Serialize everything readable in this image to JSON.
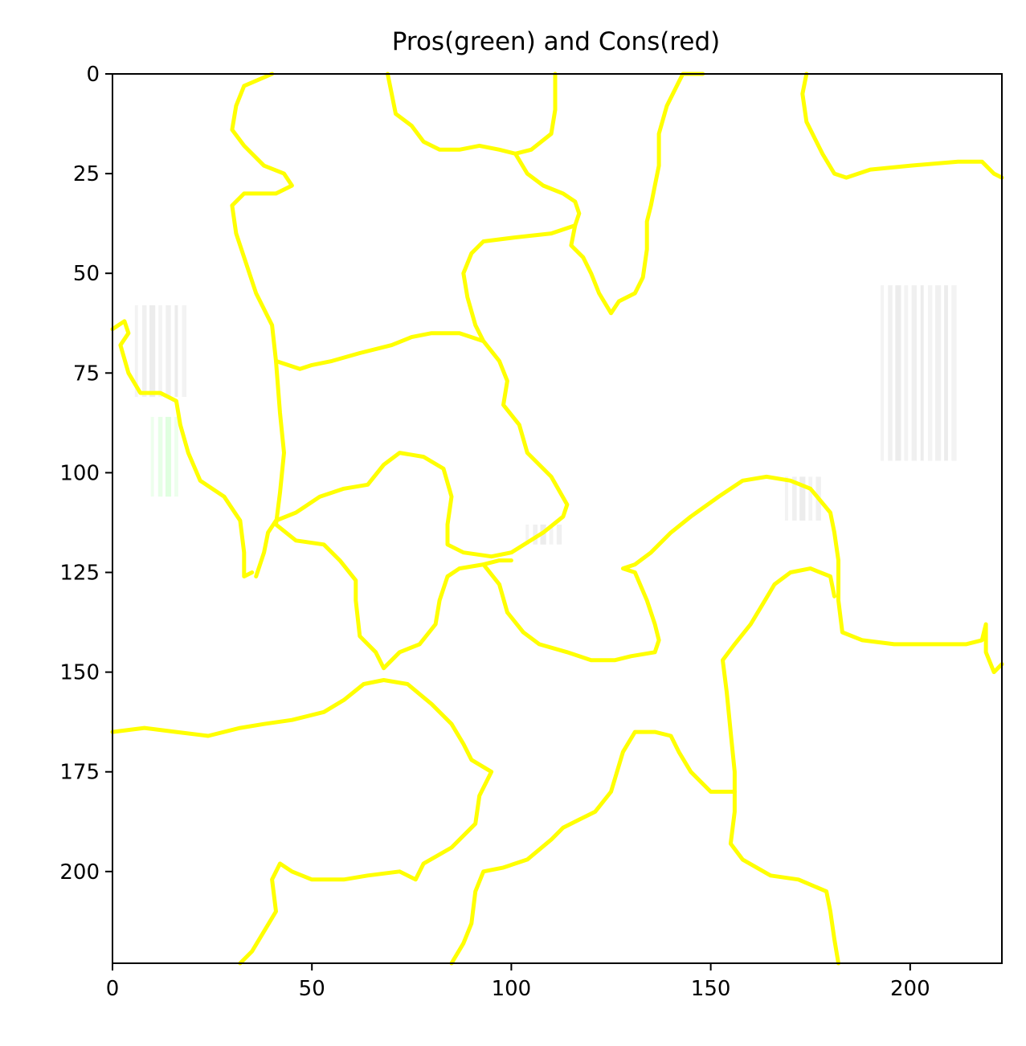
{
  "chart_data": {
    "type": "heatmap",
    "title": "Pros(green) and Cons(red)",
    "xlabel": "",
    "ylabel": "",
    "xlim": [
      0,
      223
    ],
    "ylim": [
      223,
      0
    ],
    "x_ticks": [
      0,
      50,
      100,
      150,
      200
    ],
    "y_ticks": [
      0,
      25,
      50,
      75,
      100,
      125,
      150,
      175,
      200
    ],
    "grid": false,
    "legend": "none",
    "colors": {
      "boundary": "#ffff00",
      "background": "#ffffff",
      "faint_image": "#c8c8c8",
      "pros": "#00ff00",
      "cons": "#ff0000"
    },
    "segment_boundaries": [
      {
        "points": [
          [
            40,
            0
          ],
          [
            33,
            3
          ],
          [
            31,
            8
          ],
          [
            30,
            14
          ],
          [
            33,
            18
          ],
          [
            38,
            23
          ],
          [
            43,
            25
          ],
          [
            45,
            28
          ],
          [
            41,
            30
          ],
          [
            33,
            30
          ],
          [
            30,
            33
          ],
          [
            31,
            40
          ],
          [
            36,
            55
          ],
          [
            40,
            63
          ],
          [
            41,
            72
          ],
          [
            47,
            74
          ],
          [
            50,
            73
          ],
          [
            55,
            72
          ],
          [
            62,
            70
          ],
          [
            70,
            68
          ],
          [
            75,
            66
          ],
          [
            80,
            65
          ],
          [
            87,
            65
          ],
          [
            93,
            67
          ],
          [
            97,
            72
          ],
          [
            99,
            77
          ],
          [
            98,
            83
          ],
          [
            102,
            88
          ],
          [
            104,
            95
          ],
          [
            110,
            101
          ],
          [
            114,
            108
          ],
          [
            113,
            111
          ],
          [
            108,
            115
          ],
          [
            100,
            120
          ],
          [
            95,
            121
          ],
          [
            88,
            120
          ],
          [
            84,
            118
          ],
          [
            84,
            113
          ],
          [
            85,
            106
          ],
          [
            83,
            99
          ],
          [
            78,
            96
          ],
          [
            72,
            95
          ],
          [
            68,
            98
          ],
          [
            64,
            103
          ],
          [
            58,
            104
          ],
          [
            52,
            106
          ],
          [
            46,
            110
          ],
          [
            41,
            112
          ],
          [
            39,
            115
          ],
          [
            38,
            120
          ],
          [
            36,
            126
          ]
        ]
      },
      {
        "points": [
          [
            41,
            72
          ],
          [
            42,
            85
          ],
          [
            43,
            95
          ],
          [
            42,
            105
          ],
          [
            41,
            113
          ],
          [
            46,
            117
          ],
          [
            53,
            118
          ],
          [
            57,
            122
          ],
          [
            61,
            127
          ],
          [
            61,
            132
          ],
          [
            62,
            141
          ],
          [
            66,
            145
          ],
          [
            68,
            149
          ],
          [
            72,
            145
          ],
          [
            77,
            143
          ],
          [
            81,
            138
          ],
          [
            82,
            132
          ],
          [
            84,
            126
          ],
          [
            87,
            124
          ],
          [
            93,
            123
          ],
          [
            97,
            122
          ],
          [
            100,
            122
          ]
        ]
      },
      {
        "points": [
          [
            93,
            123
          ],
          [
            97,
            128
          ],
          [
            99,
            135
          ],
          [
            103,
            140
          ],
          [
            107,
            143
          ],
          [
            114,
            145
          ],
          [
            120,
            147
          ],
          [
            126,
            147
          ],
          [
            130,
            146
          ],
          [
            136,
            145
          ],
          [
            137,
            142
          ],
          [
            136,
            138
          ],
          [
            134,
            132
          ],
          [
            131,
            125
          ],
          [
            128,
            124
          ],
          [
            131,
            123
          ],
          [
            135,
            120
          ],
          [
            140,
            115
          ],
          [
            145,
            111
          ],
          [
            152,
            106
          ],
          [
            158,
            102
          ],
          [
            164,
            101
          ],
          [
            170,
            102
          ],
          [
            175,
            104
          ],
          [
            180,
            110
          ],
          [
            181,
            115
          ],
          [
            182,
            122
          ],
          [
            182,
            132
          ],
          [
            183,
            140
          ],
          [
            188,
            142
          ],
          [
            196,
            143
          ],
          [
            203,
            143
          ],
          [
            210,
            143
          ],
          [
            214,
            143
          ],
          [
            218,
            142
          ],
          [
            219,
            138
          ],
          [
            219,
            145
          ],
          [
            221,
            150
          ],
          [
            223,
            148
          ]
        ]
      },
      {
        "points": [
          [
            69,
            0
          ],
          [
            70,
            5
          ],
          [
            71,
            10
          ],
          [
            75,
            13
          ],
          [
            78,
            17
          ],
          [
            82,
            19
          ],
          [
            87,
            19
          ],
          [
            92,
            18
          ],
          [
            97,
            19
          ],
          [
            101,
            20
          ],
          [
            105,
            19
          ],
          [
            110,
            15
          ],
          [
            111,
            9
          ],
          [
            111,
            0
          ]
        ]
      },
      {
        "points": [
          [
            101,
            20
          ],
          [
            104,
            25
          ],
          [
            108,
            28
          ],
          [
            113,
            30
          ],
          [
            116,
            32
          ],
          [
            117,
            35
          ],
          [
            116,
            38
          ],
          [
            115,
            43
          ],
          [
            118,
            46
          ],
          [
            120,
            50
          ],
          [
            122,
            55
          ],
          [
            125,
            60
          ],
          [
            127,
            57
          ],
          [
            131,
            55
          ],
          [
            133,
            51
          ],
          [
            134,
            44
          ],
          [
            134,
            37
          ],
          [
            135,
            33
          ],
          [
            136,
            28
          ],
          [
            137,
            23
          ],
          [
            137,
            15
          ],
          [
            139,
            8
          ],
          [
            142,
            2
          ],
          [
            143,
            0
          ],
          [
            148,
            0
          ]
        ]
      },
      {
        "points": [
          [
            116,
            38
          ],
          [
            110,
            40
          ],
          [
            101,
            41
          ],
          [
            93,
            42
          ],
          [
            90,
            45
          ],
          [
            88,
            50
          ],
          [
            89,
            56
          ],
          [
            91,
            63
          ],
          [
            93,
            67
          ]
        ]
      },
      {
        "points": [
          [
            174,
            0
          ],
          [
            173,
            5
          ],
          [
            174,
            12
          ],
          [
            178,
            20
          ],
          [
            181,
            25
          ],
          [
            184,
            26
          ],
          [
            190,
            24
          ],
          [
            200,
            23
          ],
          [
            212,
            22
          ],
          [
            218,
            22
          ],
          [
            221,
            25
          ],
          [
            223,
            26
          ]
        ]
      },
      {
        "points": [
          [
            0,
            64
          ],
          [
            3,
            62
          ],
          [
            4,
            65
          ],
          [
            2,
            68
          ],
          [
            4,
            75
          ],
          [
            7,
            80
          ],
          [
            12,
            80
          ],
          [
            16,
            82
          ],
          [
            17,
            88
          ],
          [
            19,
            95
          ],
          [
            22,
            102
          ],
          [
            28,
            106
          ],
          [
            32,
            112
          ],
          [
            33,
            120
          ],
          [
            33,
            126
          ],
          [
            35,
            125
          ]
        ]
      },
      {
        "points": [
          [
            0,
            165
          ],
          [
            8,
            164
          ],
          [
            16,
            165
          ],
          [
            24,
            166
          ],
          [
            32,
            164
          ],
          [
            38,
            163
          ],
          [
            45,
            162
          ],
          [
            53,
            160
          ],
          [
            58,
            157
          ],
          [
            63,
            153
          ],
          [
            68,
            152
          ],
          [
            74,
            153
          ],
          [
            80,
            158
          ],
          [
            85,
            163
          ],
          [
            88,
            168
          ],
          [
            90,
            172
          ],
          [
            95,
            175
          ],
          [
            92,
            181
          ],
          [
            91,
            188
          ],
          [
            85,
            194
          ],
          [
            78,
            198
          ],
          [
            76,
            202
          ],
          [
            72,
            200
          ],
          [
            64,
            201
          ],
          [
            58,
            202
          ],
          [
            50,
            202
          ],
          [
            45,
            200
          ],
          [
            42,
            198
          ],
          [
            40,
            202
          ],
          [
            41,
            210
          ],
          [
            38,
            215
          ],
          [
            35,
            220
          ],
          [
            32,
            223
          ]
        ]
      },
      {
        "points": [
          [
            182,
            223
          ],
          [
            181,
            217
          ],
          [
            180,
            210
          ],
          [
            179,
            205
          ],
          [
            172,
            202
          ],
          [
            165,
            201
          ],
          [
            158,
            197
          ],
          [
            155,
            193
          ],
          [
            156,
            185
          ],
          [
            156,
            175
          ],
          [
            155,
            165
          ],
          [
            154,
            155
          ],
          [
            153,
            147
          ],
          [
            156,
            143
          ],
          [
            160,
            138
          ],
          [
            163,
            133
          ],
          [
            166,
            128
          ],
          [
            170,
            125
          ],
          [
            175,
            124
          ],
          [
            180,
            126
          ],
          [
            181,
            131
          ]
        ]
      },
      {
        "points": [
          [
            156,
            180
          ],
          [
            150,
            180
          ],
          [
            145,
            175
          ],
          [
            142,
            170
          ],
          [
            140,
            166
          ],
          [
            136,
            165
          ],
          [
            131,
            165
          ],
          [
            128,
            170
          ],
          [
            125,
            180
          ],
          [
            121,
            185
          ],
          [
            117,
            187
          ],
          [
            113,
            189
          ],
          [
            110,
            192
          ],
          [
            104,
            197
          ],
          [
            98,
            199
          ],
          [
            93,
            200
          ],
          [
            91,
            205
          ],
          [
            90,
            213
          ],
          [
            88,
            218
          ],
          [
            85,
            223
          ]
        ]
      }
    ],
    "faint_regions": [
      {
        "x": [
          5,
          19
        ],
        "y": [
          58,
          81
        ],
        "kind": "cons"
      },
      {
        "x": [
          192,
          212
        ],
        "y": [
          53,
          97
        ],
        "kind": "cons"
      },
      {
        "x": [
          168,
          178
        ],
        "y": [
          101,
          112
        ],
        "kind": "cons"
      },
      {
        "x": [
          103,
          113
        ],
        "y": [
          113,
          118
        ],
        "kind": "cons"
      },
      {
        "x": [
          9,
          17
        ],
        "y": [
          86,
          106
        ],
        "kind": "pros"
      }
    ]
  }
}
